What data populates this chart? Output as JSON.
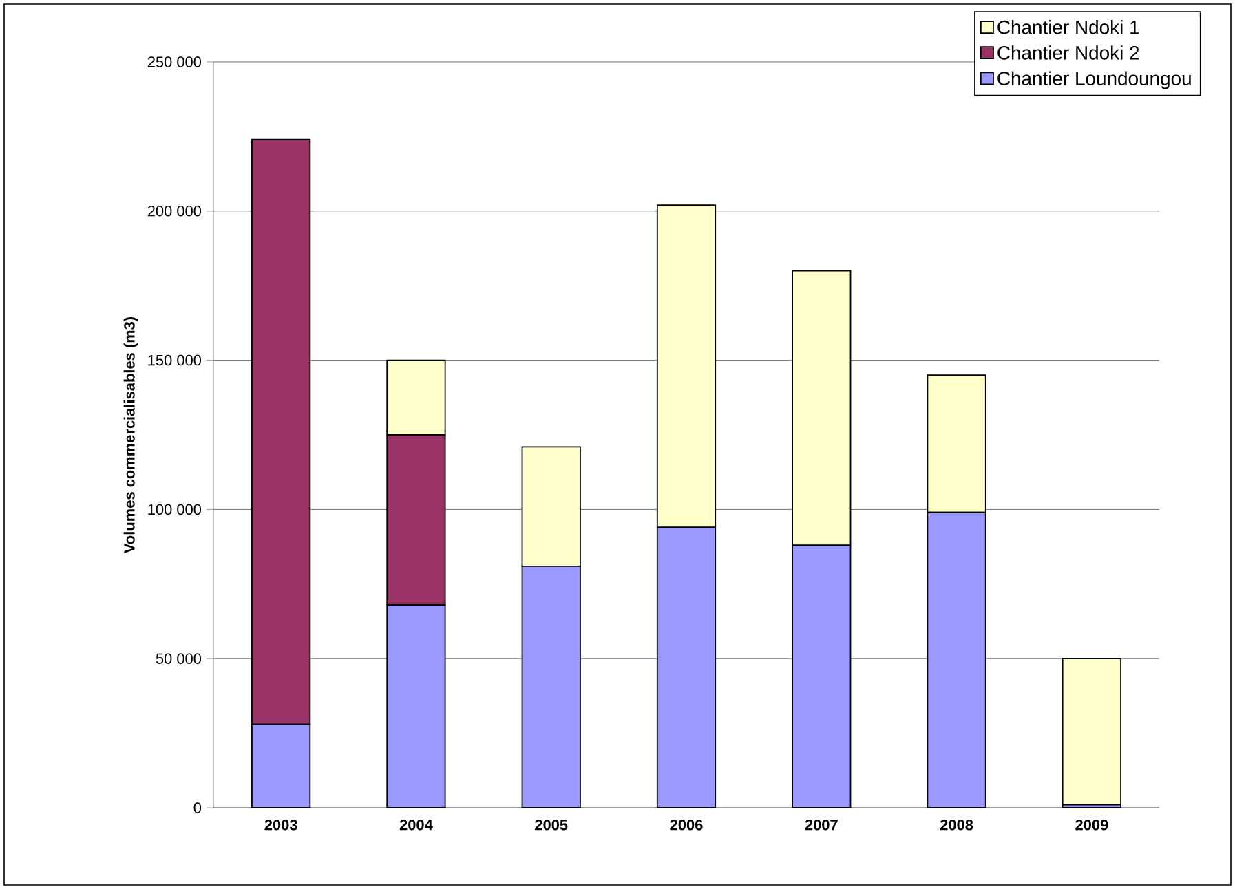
{
  "chart_data": {
    "type": "bar",
    "stacked": true,
    "ylabel": "Volumes commercialisables (m3)",
    "categories": [
      "2003",
      "2004",
      "2005",
      "2006",
      "2007",
      "2008",
      "2009"
    ],
    "series": [
      {
        "name": "Chantier Loundoungou",
        "color": "#9999ff",
        "values": [
          28000,
          68000,
          81000,
          94000,
          88000,
          99000,
          1000
        ]
      },
      {
        "name": "Chantier Ndoki 2",
        "color": "#993366",
        "values": [
          196000,
          57000,
          null,
          null,
          null,
          null,
          null
        ]
      },
      {
        "name": "Chantier Ndoki 1",
        "color": "#ffffcc",
        "values": [
          null,
          25000,
          40000,
          108000,
          92000,
          46000,
          49000
        ]
      }
    ],
    "ylim": [
      0,
      250000
    ],
    "yticks": [
      {
        "value": 0,
        "label": "0"
      },
      {
        "value": 50000,
        "label": "50 000"
      },
      {
        "value": 100000,
        "label": "100 000"
      },
      {
        "value": 150000,
        "label": "150 000"
      },
      {
        "value": 200000,
        "label": "200 000"
      },
      {
        "value": 250000,
        "label": "250 000"
      }
    ],
    "grid": "y",
    "legend": "top right"
  }
}
